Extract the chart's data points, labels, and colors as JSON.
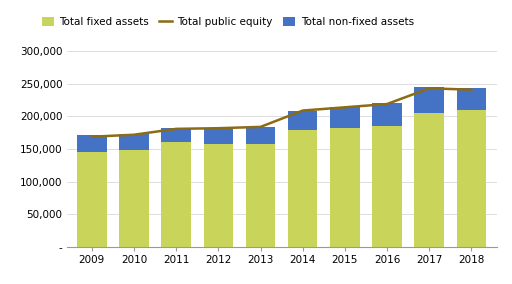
{
  "years": [
    2009,
    2010,
    2011,
    2012,
    2013,
    2014,
    2015,
    2016,
    2017,
    2018
  ],
  "fixed_assets": [
    145000,
    148000,
    161000,
    158000,
    158000,
    180000,
    183000,
    185000,
    205000,
    210000
  ],
  "non_fixed_assets": [
    27000,
    25000,
    22000,
    25000,
    26000,
    28000,
    32000,
    35000,
    40000,
    33000
  ],
  "public_equity": [
    169000,
    172000,
    181000,
    182000,
    184000,
    209000,
    214000,
    219000,
    243000,
    241000
  ],
  "fixed_color": "#c8d45a",
  "non_fixed_color": "#4472c4",
  "equity_color": "#8b6b14",
  "equity_linewidth": 1.8,
  "legend_labels": [
    "Total non-fixed assets",
    "Total fixed assets",
    "Total public equity"
  ],
  "ylim": [
    0,
    300000
  ],
  "yticks": [
    0,
    50000,
    100000,
    150000,
    200000,
    250000,
    300000
  ],
  "ytick_labels": [
    "-",
    "50,000",
    "100,000",
    "150,000",
    "200,000",
    "250,000",
    "300,000"
  ],
  "background_color": "#ffffff",
  "figsize": [
    5.12,
    2.84
  ],
  "dpi": 100
}
